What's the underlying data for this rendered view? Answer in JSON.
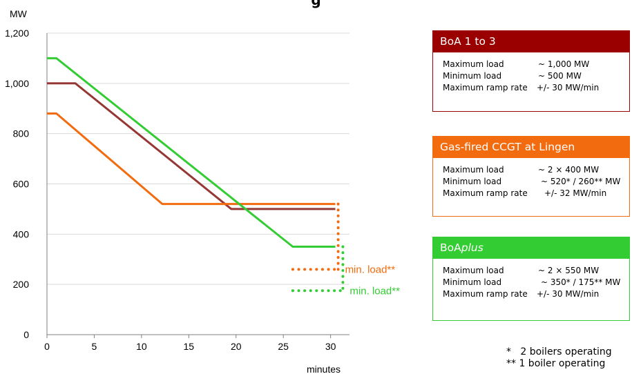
{
  "page": {
    "title_fragment": "g",
    "footnotes": [
      "*   2 boilers operating",
      "** 1 boiler operating"
    ]
  },
  "colors": {
    "boa": "#953735",
    "boa_box": "#9b0000",
    "ccgt": "#f26b0f",
    "boaplus": "#33cc33",
    "grid": "#d9d9d9",
    "axis": "#7f7f7f"
  },
  "chart_data": {
    "type": "line",
    "ylabel": "MW",
    "xlabel": "minutes",
    "xlim": [
      0,
      32
    ],
    "ylim": [
      0,
      1200
    ],
    "x_ticks": [
      0,
      5,
      10,
      15,
      20,
      25,
      30
    ],
    "x_tick_labels": [
      "0",
      "5",
      "10",
      "15",
      "20",
      "25",
      "30"
    ],
    "y_ticks": [
      0,
      200,
      400,
      600,
      800,
      1000,
      1200
    ],
    "y_tick_labels": [
      "0",
      "200",
      "400",
      "600",
      "800",
      "1,000",
      "1,200"
    ],
    "grid": "horizontal",
    "series": [
      {
        "key": "boa",
        "points": [
          [
            0,
            1000
          ],
          [
            3,
            1000
          ],
          [
            19.5,
            500
          ],
          [
            30.5,
            500
          ]
        ]
      },
      {
        "key": "ccgt",
        "points": [
          [
            0,
            880
          ],
          [
            1,
            880
          ],
          [
            12.2,
            520
          ],
          [
            30.5,
            520
          ]
        ]
      },
      {
        "key": "boaplus",
        "points": [
          [
            0,
            1100
          ],
          [
            1,
            1100
          ],
          [
            26,
            350
          ],
          [
            30.5,
            350
          ]
        ]
      }
    ],
    "min_load_markers": [
      {
        "key": "ccgt",
        "label": "min. load**",
        "y": 260,
        "x_start": 26,
        "x_end": 30.8,
        "drop_from": 520
      },
      {
        "key": "boaplus",
        "label": "min. load**",
        "y": 175,
        "x_start": 26,
        "x_end": 31.3,
        "drop_from": 350
      }
    ]
  },
  "legend_boxes": [
    {
      "key": "boa",
      "title_html": false,
      "title": "BoA 1 to 3",
      "rows": [
        [
          "Maximum load",
          "~ 1,000 MW"
        ],
        [
          "Minimum load",
          "~ 500 MW"
        ],
        [
          "Maximum ramp rate",
          "+/- 30 MW/min"
        ]
      ]
    },
    {
      "key": "ccgt",
      "title": "Gas-fired CCGT at Lingen",
      "rows": [
        [
          "Maximum load",
          "~ 2 × 400 MW"
        ],
        [
          "Minimum load",
          "~ 520* / 260** MW"
        ],
        [
          "Maximum ramp rate",
          "+/- 32 MW/min"
        ]
      ]
    },
    {
      "key": "boaplus",
      "title_parts": [
        "BoA",
        "plus"
      ],
      "rows": [
        [
          "Maximum load",
          "~ 2 × 550 MW"
        ],
        [
          "Minimum load",
          "~ 350* / 175** MW"
        ],
        [
          "Maximum ramp rate",
          "+/- 30 MW/min"
        ]
      ]
    }
  ]
}
